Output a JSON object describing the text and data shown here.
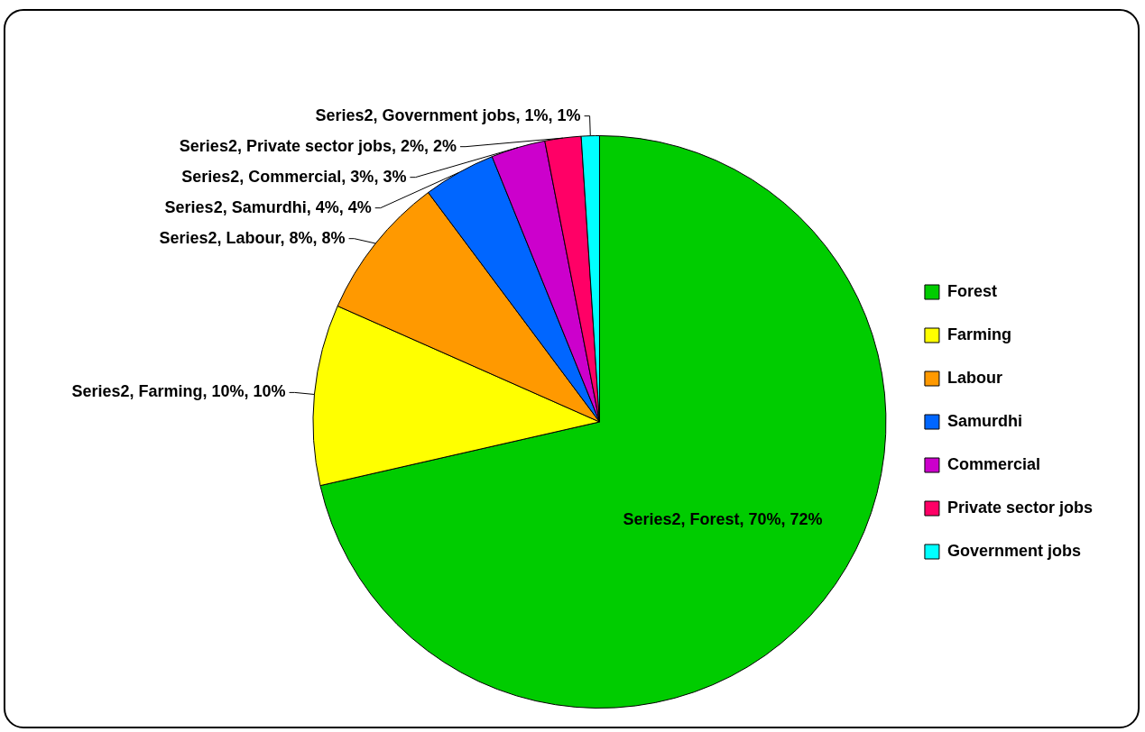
{
  "chart_data": {
    "type": "pie",
    "categories": [
      "Forest",
      "Farming",
      "Labour",
      "Samurdhi",
      "Commercial",
      "Private sector jobs",
      "Government jobs"
    ],
    "values": [
      70,
      10,
      8,
      4,
      3,
      2,
      1
    ],
    "colors": [
      "#00cc00",
      "#ffff00",
      "#ff9900",
      "#0066ff",
      "#cc00cc",
      "#ff0066",
      "#00ffff"
    ],
    "value_labels": [
      "Series2, Forest, 70%, 72%",
      "Series2, Farming, 10%, 10%",
      "Series2, Labour, 8%, 8%",
      "Series2, Samurdhi, 4%, 4%",
      "Series2, Commercial, 3%, 3%",
      "Series2, Private sector jobs, 2%, 2%",
      "Series2, Government jobs, 1%, 1%"
    ],
    "legend": "right"
  }
}
